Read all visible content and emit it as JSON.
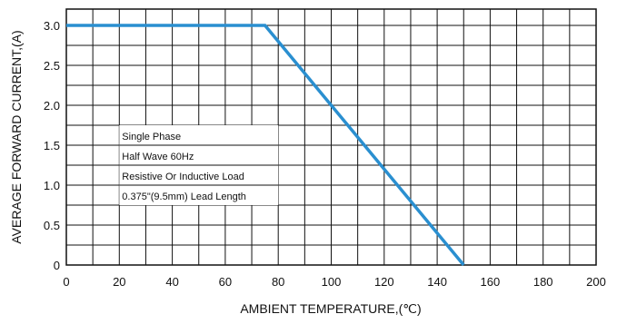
{
  "chart_data": {
    "type": "line",
    "xlabel": "AMBIENT TEMPERATURE,(℃)",
    "ylabel": "AVERAGE FORWARD CURRENT,(A)",
    "xlim": [
      0,
      200
    ],
    "ylim": [
      0,
      3.1
    ],
    "x_ticks": [
      "0",
      "20",
      "40",
      "60",
      "80",
      "100",
      "120",
      "140",
      "160",
      "180",
      "200"
    ],
    "y_ticks": [
      "0",
      "0.5",
      "1.0",
      "1.5",
      "2.0",
      "2.5",
      "3.0"
    ],
    "grid": true,
    "legend": "none",
    "series": [
      {
        "color": "#2a8fd0",
        "points": [
          [
            0,
            3.0
          ],
          [
            75,
            3.0
          ],
          [
            150,
            0
          ]
        ]
      }
    ],
    "annotations": [
      "Single Phase",
      "Half Wave 60Hz",
      "Resistive Or Inductive Load",
      "0.375\"(9.5mm) Lead Length"
    ]
  }
}
